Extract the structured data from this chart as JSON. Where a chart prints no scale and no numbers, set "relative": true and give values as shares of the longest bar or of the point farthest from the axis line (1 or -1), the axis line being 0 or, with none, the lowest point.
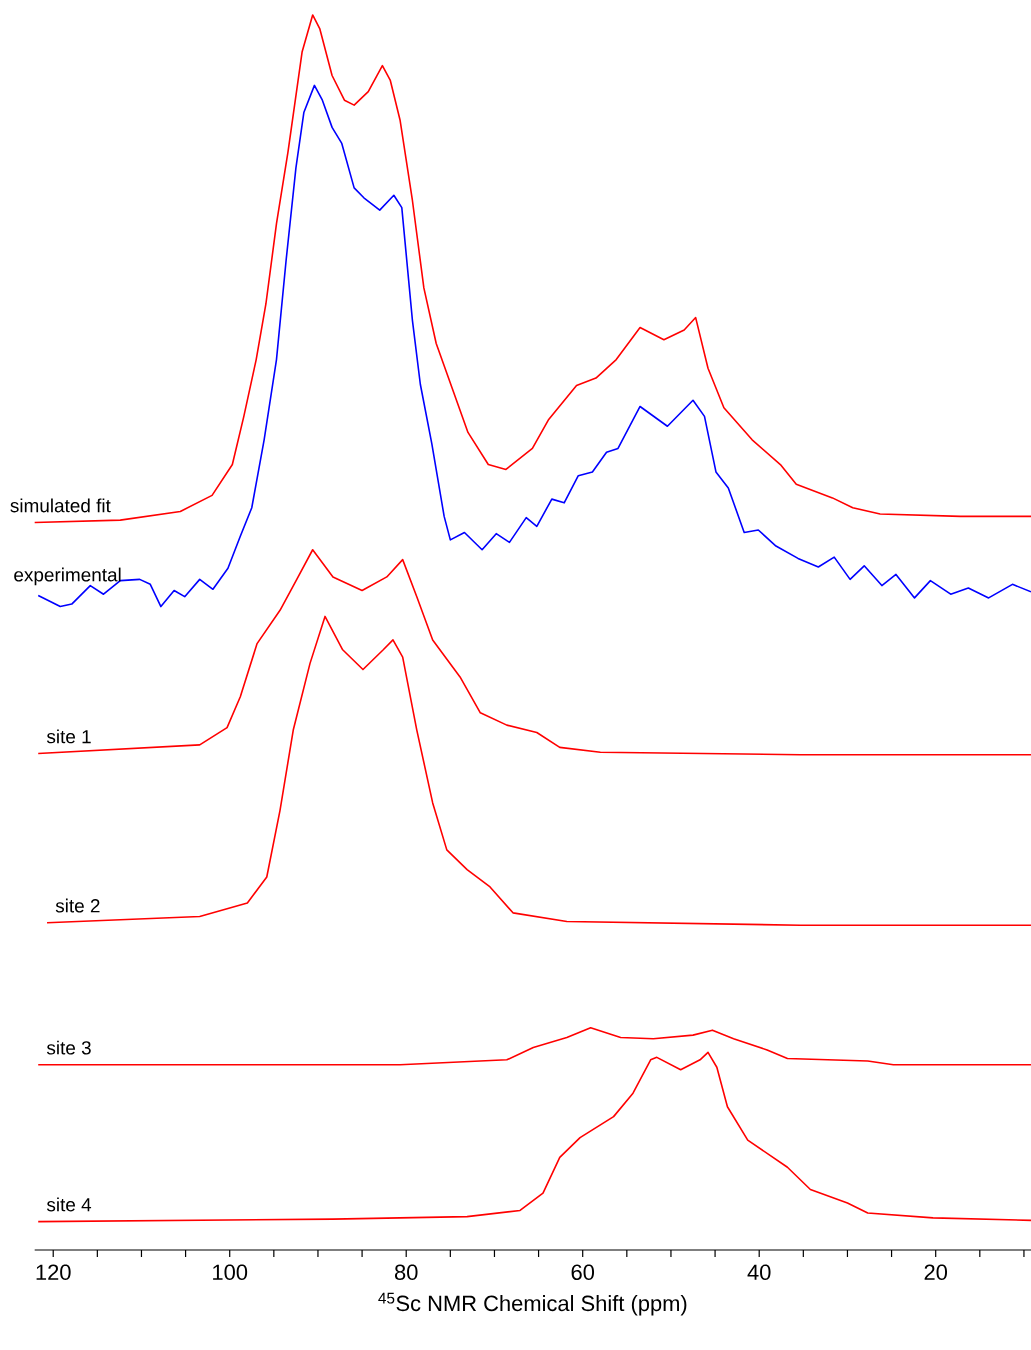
{
  "chart_data": {
    "type": "line",
    "relative": true,
    "xlabel": "$^{45}$Sc NMR Chemical Shift (ppm)",
    "xlim": [
      122.1,
      9.2
    ],
    "xticks": [
      120,
      {
        "value": 115,
        "label": null
      },
      {
        "value": 110,
        "label": null
      },
      {
        "value": 105,
        "label": null
      },
      100,
      {
        "value": 95,
        "label": null
      },
      {
        "value": 90,
        "label": null
      },
      {
        "value": 85,
        "label": null
      },
      80,
      {
        "value": 75,
        "label": null
      },
      {
        "value": 70,
        "label": null
      },
      {
        "value": 65,
        "label": null
      },
      60,
      {
        "value": 55,
        "label": null
      },
      {
        "value": 50,
        "label": null
      },
      {
        "value": 45,
        "label": null
      },
      40,
      {
        "value": 35,
        "label": null
      },
      {
        "value": 30,
        "label": null
      },
      {
        "value": 25,
        "label": null
      },
      20,
      {
        "value": 15,
        "label": null
      },
      {
        "value": 10,
        "label": null
      }
    ],
    "series": [
      {
        "name": "simulated fit",
        "color": "#ff0000",
        "x": [
          122.1,
          112.4,
          105.6,
          102.0,
          99.7,
          98.4,
          97.0,
          95.9,
          94.7,
          93.4,
          91.8,
          90.6,
          89.8,
          88.4,
          87.0,
          85.9,
          84.3,
          82.7,
          81.8,
          80.7,
          79.3,
          78.0,
          76.6,
          74.8,
          73.0,
          70.7,
          68.7,
          65.7,
          63.9,
          60.7,
          58.5,
          56.2,
          53.5,
          50.8,
          48.5,
          47.2,
          45.8,
          44.0,
          40.8,
          37.6,
          35.8,
          31.7,
          29.4,
          26.3,
          17.2,
          9.2
        ],
        "values": [
          0.589,
          0.591,
          0.598,
          0.611,
          0.636,
          0.675,
          0.721,
          0.766,
          0.831,
          0.889,
          0.97,
          1.0,
          0.989,
          0.951,
          0.931,
          0.927,
          0.938,
          0.959,
          0.947,
          0.915,
          0.85,
          0.779,
          0.734,
          0.698,
          0.662,
          0.636,
          0.632,
          0.649,
          0.672,
          0.7,
          0.706,
          0.721,
          0.747,
          0.737,
          0.745,
          0.755,
          0.714,
          0.682,
          0.656,
          0.636,
          0.62,
          0.609,
          0.601,
          0.596,
          0.594,
          0.594
        ]
      },
      {
        "name": "experimental",
        "color": "#0000ff",
        "x": [
          121.7,
          119.2,
          117.9,
          115.8,
          114.3,
          112.4,
          110.2,
          109.0,
          107.8,
          106.3,
          105.1,
          103.4,
          101.9,
          100.2,
          98.8,
          97.5,
          96.1,
          94.7,
          93.6,
          92.5,
          91.6,
          90.4,
          89.5,
          88.4,
          87.3,
          85.9,
          84.8,
          83.0,
          81.4,
          80.5,
          79.3,
          78.4,
          77.1,
          75.7,
          75.0,
          73.4,
          71.4,
          69.8,
          68.3,
          66.4,
          65.2,
          63.5,
          62.1,
          60.5,
          58.9,
          57.3,
          56.0,
          53.5,
          50.4,
          47.5,
          46.2,
          44.9,
          43.5,
          41.7,
          40.1,
          38.1,
          35.6,
          33.3,
          31.5,
          29.7,
          28.1,
          26.1,
          24.5,
          22.4,
          20.6,
          18.3,
          16.3,
          14.0,
          11.3,
          9.2
        ],
        "values": [
          0.53,
          0.521,
          0.523,
          0.538,
          0.531,
          0.542,
          0.543,
          0.539,
          0.521,
          0.534,
          0.529,
          0.543,
          0.535,
          0.552,
          0.578,
          0.601,
          0.656,
          0.721,
          0.802,
          0.876,
          0.921,
          0.943,
          0.931,
          0.909,
          0.896,
          0.86,
          0.852,
          0.842,
          0.854,
          0.844,
          0.753,
          0.701,
          0.653,
          0.594,
          0.575,
          0.581,
          0.567,
          0.58,
          0.573,
          0.593,
          0.586,
          0.608,
          0.605,
          0.627,
          0.63,
          0.646,
          0.649,
          0.683,
          0.667,
          0.688,
          0.675,
          0.63,
          0.617,
          0.581,
          0.583,
          0.57,
          0.56,
          0.553,
          0.561,
          0.543,
          0.554,
          0.538,
          0.547,
          0.528,
          0.542,
          0.531,
          0.536,
          0.528,
          0.539,
          0.533
        ]
      },
      {
        "name": "site 1",
        "color": "#ff0000",
        "x": [
          121.7,
          103.4,
          100.3,
          98.8,
          96.9,
          94.3,
          92.4,
          90.6,
          88.3,
          85.0,
          82.2,
          80.4,
          78.8,
          77.0,
          73.9,
          71.6,
          68.6,
          65.2,
          62.6,
          58.0,
          35.3,
          9.2
        ],
        "values": [
          0.402,
          0.409,
          0.423,
          0.448,
          0.491,
          0.518,
          0.543,
          0.567,
          0.545,
          0.534,
          0.545,
          0.559,
          0.529,
          0.494,
          0.464,
          0.435,
          0.425,
          0.419,
          0.407,
          0.403,
          0.401,
          0.401
        ]
      },
      {
        "name": "site 2",
        "color": "#ff0000",
        "x": [
          120.7,
          103.4,
          98.0,
          95.8,
          94.3,
          92.8,
          90.9,
          89.2,
          87.2,
          84.9,
          82.6,
          81.5,
          80.4,
          78.8,
          77.0,
          75.4,
          73.1,
          70.5,
          67.9,
          61.8,
          35.3,
          9.2
        ],
        "values": [
          0.265,
          0.27,
          0.281,
          0.302,
          0.356,
          0.421,
          0.475,
          0.513,
          0.486,
          0.47,
          0.486,
          0.494,
          0.48,
          0.421,
          0.362,
          0.324,
          0.308,
          0.294,
          0.273,
          0.266,
          0.263,
          0.263
        ]
      },
      {
        "name": "site 3",
        "color": "#ff0000",
        "x": [
          121.7,
          80.7,
          68.6,
          65.6,
          61.8,
          59.1,
          55.7,
          52.0,
          47.5,
          45.3,
          42.9,
          39.1,
          36.8,
          27.7,
          24.8,
          9.2
        ],
        "values": [
          0.15,
          0.15,
          0.154,
          0.164,
          0.172,
          0.18,
          0.172,
          0.171,
          0.174,
          0.178,
          0.171,
          0.162,
          0.155,
          0.153,
          0.15,
          0.15
        ]
      },
      {
        "name": "site 4",
        "color": "#ff0000",
        "x": [
          121.7,
          88.3,
          73.1,
          67.1,
          64.5,
          62.6,
          60.3,
          56.5,
          54.3,
          52.3,
          51.6,
          48.9,
          46.7,
          45.8,
          44.8,
          43.6,
          41.3,
          36.8,
          34.2,
          30.0,
          27.7,
          20.3,
          9.2
        ],
        "values": [
          0.023,
          0.025,
          0.027,
          0.032,
          0.046,
          0.075,
          0.091,
          0.108,
          0.127,
          0.154,
          0.156,
          0.146,
          0.154,
          0.16,
          0.148,
          0.116,
          0.089,
          0.067,
          0.049,
          0.038,
          0.03,
          0.026,
          0.024
        ]
      }
    ]
  }
}
